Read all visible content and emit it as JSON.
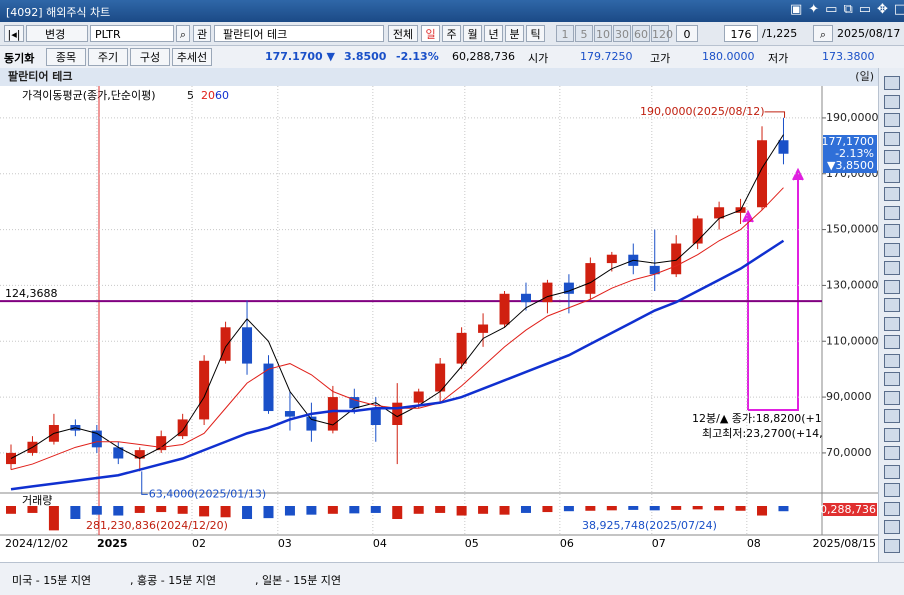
{
  "window": {
    "title": "[4092] 해외주식 차트"
  },
  "toolbar": {
    "change": "변경",
    "symbol": "PLTR",
    "related": "관",
    "name": "팔란티어 테크",
    "all": "전체",
    "periods": [
      "일",
      "주",
      "월",
      "년",
      "분",
      "틱"
    ],
    "minutes": [
      "1",
      "5",
      "10",
      "30",
      "60",
      "120"
    ],
    "zero": "0",
    "count": "176",
    "total": "/1,225",
    "date": "2025/08/17"
  },
  "quote": {
    "sync": "동기화",
    "tabs": [
      "종목",
      "주기",
      "구성",
      "추세선"
    ],
    "price": "177.1700 ▼",
    "change": "3.8500",
    "rate": "-2.13%",
    "volume": "60,288,736",
    "open_label": "시가",
    "open": "179.7250",
    "high_label": "고가",
    "high": "180.0000",
    "low_label": "저가",
    "low": "173.3800"
  },
  "chart_data": {
    "type": "candlestick",
    "title": "팔란티어 테크",
    "period": "(일)",
    "legend": {
      "label": "가격이동평균(종가,단순이평)",
      "periods": [
        "5",
        "20",
        "60"
      ]
    },
    "x": [
      "2024/12/02",
      "2024/12/09",
      "2024/12/16",
      "2024/12/23",
      "2024/12/30",
      "2025/01/06",
      "2025/01/13",
      "2025/01/20",
      "2025/01/27",
      "2025/02/03",
      "2025/02/10",
      "2025/02/17",
      "2025/02/24",
      "2025/03/03",
      "2025/03/10",
      "2025/03/17",
      "2025/03/24",
      "2025/03/31",
      "2025/04/07",
      "2025/04/14",
      "2025/04/21",
      "2025/04/28",
      "2025/05/05",
      "2025/05/12",
      "2025/05/19",
      "2025/05/26",
      "2025/06/02",
      "2025/06/09",
      "2025/06/16",
      "2025/06/23",
      "2025/06/30",
      "2025/07/07",
      "2025/07/14",
      "2025/07/21",
      "2025/07/28",
      "2025/08/04",
      "2025/08/11"
    ],
    "open": [
      66,
      70,
      74,
      80,
      78,
      72,
      68,
      71,
      76,
      82,
      103,
      115,
      102,
      85,
      83,
      78,
      90,
      86,
      80,
      88,
      92,
      102,
      113,
      116,
      127,
      124,
      131,
      127,
      138,
      141,
      137,
      134,
      145,
      154,
      156,
      158,
      182
    ],
    "high": [
      73,
      76,
      84,
      82,
      80,
      74,
      72,
      78,
      84,
      105,
      117,
      124.6,
      105,
      92,
      88,
      94,
      93,
      90,
      95,
      93,
      104,
      115,
      120,
      128,
      131,
      132,
      134,
      140,
      142,
      145,
      150,
      148,
      155,
      160,
      161,
      187,
      190
    ],
    "low": [
      64,
      69,
      73,
      76,
      70,
      66,
      63.4,
      70,
      75,
      80,
      102,
      98,
      84,
      78,
      74,
      77,
      84,
      74,
      66,
      86,
      88,
      100,
      108,
      115,
      121,
      120,
      120,
      125,
      135,
      134,
      128,
      133,
      143,
      150,
      152,
      157,
      173.38
    ],
    "close": [
      70,
      74,
      80,
      78,
      72,
      68,
      71,
      76,
      82,
      103,
      115,
      102,
      85,
      83,
      78,
      90,
      86,
      80,
      88,
      92,
      102,
      113,
      116,
      127,
      124,
      131,
      127,
      138,
      141,
      137,
      134,
      145,
      154,
      158,
      158,
      182,
      177.17
    ],
    "series": [
      {
        "name": "5",
        "color": "#000000",
        "values": [
          68,
          72,
          77,
          79,
          77,
          72,
          68,
          72,
          78,
          90,
          108,
          118,
          110,
          92,
          82,
          80,
          86,
          88,
          83,
          87,
          92,
          101,
          111,
          115,
          122,
          126,
          128,
          131,
          136,
          139,
          138,
          139,
          146,
          154,
          157,
          172,
          184
        ]
      },
      {
        "name": "20",
        "color": "#e0201a",
        "values": [
          64,
          66,
          69,
          72,
          74,
          74,
          73,
          72,
          73,
          77,
          86,
          95,
          100,
          102,
          98,
          92,
          89,
          87,
          86,
          86,
          88,
          94,
          101,
          108,
          114,
          119,
          122,
          125,
          129,
          132,
          134,
          137,
          141,
          146,
          150,
          157,
          165
        ]
      },
      {
        "name": "60",
        "color": "#1030d0",
        "values": [
          57,
          58,
          59,
          60,
          61,
          62,
          64,
          66,
          68,
          71,
          74,
          77,
          79,
          82,
          84,
          85,
          85,
          86,
          86,
          87,
          88,
          90,
          93,
          96,
          99,
          102,
          105,
          109,
          113,
          117,
          121,
          124,
          128,
          132,
          136,
          141,
          146
        ]
      }
    ],
    "up_color": "#d02010",
    "down_color": "#1a50c8",
    "xlim": [
      "2024/12/02",
      "2025/08/19"
    ],
    "xticks": [
      {
        "value": "2024/12/02",
        "label": "2024/12/02"
      },
      {
        "value": "2025/01/01",
        "label": "2025"
      },
      {
        "value": "2025/02/01",
        "label": "02"
      },
      {
        "value": "2025/03/01",
        "label": "03"
      },
      {
        "value": "2025/04/01",
        "label": "04"
      },
      {
        "value": "2025/05/01",
        "label": "05"
      },
      {
        "value": "2025/06/01",
        "label": "06"
      },
      {
        "value": "2025/07/01",
        "label": "07"
      },
      {
        "value": "2025/08/01",
        "label": "08"
      },
      {
        "value": "2025/08/15",
        "label": "2025/08/15"
      }
    ],
    "ylim": [
      56,
      200
    ],
    "yticks": [
      {
        "value": 70,
        "label": "70,0000"
      },
      {
        "value": 90,
        "label": "90,0000"
      },
      {
        "value": 110,
        "label": "110,0000"
      },
      {
        "value": 130,
        "label": "130,0000"
      },
      {
        "value": 150,
        "label": "150,0000"
      },
      {
        "value": 170,
        "label": "170,0000"
      },
      {
        "value": 190,
        "label": "190,0000"
      }
    ],
    "grid": true,
    "last": {
      "price": "177,1700",
      "rate": "-2.13%",
      "change": "▼3,8500"
    },
    "hline": {
      "value": 124.3688,
      "label": "124,3688",
      "color": "#800080"
    },
    "max_note": {
      "x": "2025/08/12",
      "y": 190,
      "label": "190,0000(2025/08/12)"
    },
    "min_note": {
      "x": "2025/01/13",
      "y": 63.4,
      "label": "63,4000(2025/01/13)"
    },
    "measure": [
      "12봉/▲ 종가:18,8200(+1",
      "최고최저:23,2700(+14,"
    ],
    "volume": {
      "title": "거래량",
      "values": [
        90000000,
        80000000,
        281230836,
        150000000,
        100000000,
        110000000,
        80000000,
        70000000,
        90000000,
        120000000,
        130000000,
        150000000,
        140000000,
        110000000,
        100000000,
        90000000,
        85000000,
        80000000,
        150000000,
        90000000,
        80000000,
        110000000,
        90000000,
        100000000,
        80000000,
        70000000,
        60000000,
        55000000,
        50000000,
        45000000,
        50000000,
        45000000,
        38925748,
        50000000,
        55000000,
        110000000,
        60288736
      ],
      "vlim": [
        0,
        300000000
      ],
      "max_label": "281,230,836(2024/12/20)",
      "min_label": "38,925,748(2025/07/24)",
      "last": "60,288,736"
    }
  },
  "status": [
    "미국 - 15분 지연",
    ", 홍콩 - 15분 지연",
    ", 일본 - 15분 지연"
  ]
}
